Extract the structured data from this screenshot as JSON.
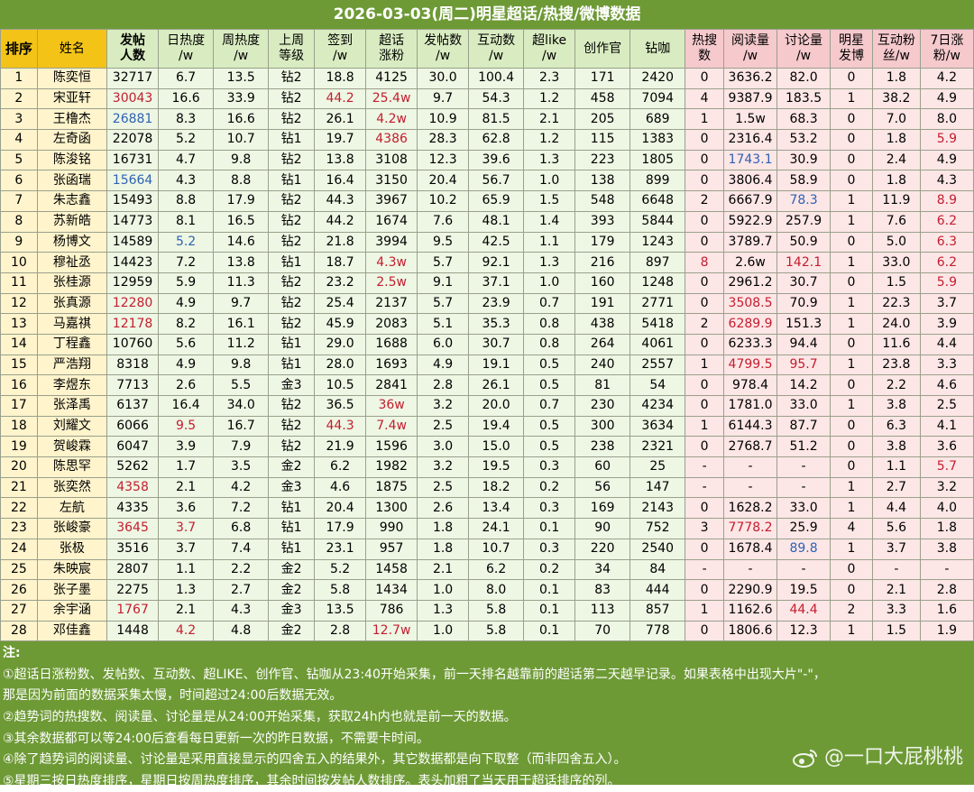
{
  "title": "2026-03-03(周二)明星超话/热搜/微博数据",
  "headers": [
    "排序",
    "姓名",
    "发帖\n人数",
    "日热度\n/w",
    "周热度\n/w",
    "上周\n等级",
    "签到\n/w",
    "超话\n涨粉",
    "发帖数\n/w",
    "互动数\n/w",
    "超like\n/w",
    "创作官",
    "钻咖",
    "热搜\n数",
    "阅读量\n/w",
    "讨论量\n/w",
    "明星\n发博",
    "互动粉\n丝/w",
    "7日涨\n粉/w"
  ],
  "rows": [
    [
      "1",
      "陈奕恒",
      "32717",
      "6.7",
      "13.5",
      "钻2",
      "18.8",
      "4125",
      "30.0",
      "100.4",
      "2.3",
      "171",
      "2420",
      "0",
      "3636.2",
      "82.0",
      "0",
      "1.8",
      "4.2"
    ],
    [
      "2",
      "宋亚轩",
      "30043",
      "16.6",
      "33.9",
      "钻2",
      "44.2",
      "25.4w",
      "9.7",
      "54.3",
      "1.2",
      "458",
      "7094",
      "4",
      "9387.9",
      "183.5",
      "1",
      "38.2",
      "4.9"
    ],
    [
      "3",
      "王橹杰",
      "26881",
      "8.3",
      "16.6",
      "钻2",
      "26.1",
      "4.2w",
      "10.9",
      "81.5",
      "2.1",
      "205",
      "689",
      "1",
      "1.5w",
      "68.3",
      "0",
      "7.0",
      "8.0"
    ],
    [
      "4",
      "左奇函",
      "22078",
      "5.2",
      "10.7",
      "钻1",
      "19.7",
      "4386",
      "28.3",
      "62.8",
      "1.2",
      "115",
      "1383",
      "0",
      "2316.4",
      "53.2",
      "0",
      "1.8",
      "5.9"
    ],
    [
      "5",
      "陈浚铭",
      "16731",
      "4.7",
      "9.8",
      "钻2",
      "13.8",
      "3108",
      "12.3",
      "39.6",
      "1.3",
      "223",
      "1805",
      "0",
      "1743.1",
      "30.9",
      "0",
      "2.4",
      "4.9"
    ],
    [
      "6",
      "张函瑞",
      "15664",
      "4.3",
      "8.8",
      "钻1",
      "16.4",
      "3150",
      "20.4",
      "56.7",
      "1.0",
      "138",
      "899",
      "0",
      "3806.4",
      "58.9",
      "0",
      "1.8",
      "4.3"
    ],
    [
      "7",
      "朱志鑫",
      "15493",
      "8.8",
      "17.9",
      "钻2",
      "44.3",
      "3967",
      "10.2",
      "65.9",
      "1.5",
      "548",
      "6648",
      "2",
      "6667.9",
      "78.3",
      "1",
      "11.9",
      "8.9"
    ],
    [
      "8",
      "苏新皓",
      "14773",
      "8.1",
      "16.5",
      "钻2",
      "44.2",
      "1674",
      "7.6",
      "48.1",
      "1.4",
      "393",
      "5844",
      "0",
      "5922.9",
      "257.9",
      "1",
      "7.6",
      "6.2"
    ],
    [
      "9",
      "杨博文",
      "14589",
      "5.2",
      "14.6",
      "钻2",
      "21.8",
      "3994",
      "9.5",
      "42.5",
      "1.1",
      "179",
      "1243",
      "0",
      "3789.7",
      "50.9",
      "0",
      "5.0",
      "6.3"
    ],
    [
      "10",
      "穆祉丞",
      "14423",
      "7.2",
      "13.8",
      "钻1",
      "18.7",
      "4.3w",
      "5.7",
      "92.1",
      "1.3",
      "216",
      "897",
      "8",
      "2.6w",
      "142.1",
      "1",
      "33.0",
      "6.2"
    ],
    [
      "11",
      "张桂源",
      "12959",
      "5.9",
      "11.3",
      "钻2",
      "23.2",
      "2.5w",
      "9.1",
      "37.1",
      "1.0",
      "160",
      "1248",
      "0",
      "2961.2",
      "30.7",
      "0",
      "1.5",
      "5.9"
    ],
    [
      "12",
      "张真源",
      "12280",
      "4.9",
      "9.7",
      "钻2",
      "25.4",
      "2137",
      "5.7",
      "23.9",
      "0.7",
      "191",
      "2771",
      "0",
      "3508.5",
      "70.9",
      "1",
      "22.3",
      "3.7"
    ],
    [
      "13",
      "马嘉祺",
      "12178",
      "8.2",
      "16.1",
      "钻2",
      "45.9",
      "2083",
      "5.1",
      "35.3",
      "0.8",
      "438",
      "5418",
      "2",
      "6289.9",
      "151.3",
      "1",
      "24.0",
      "3.9"
    ],
    [
      "14",
      "丁程鑫",
      "10760",
      "5.6",
      "11.2",
      "钻1",
      "29.0",
      "1688",
      "6.0",
      "30.7",
      "0.8",
      "264",
      "4061",
      "0",
      "6233.3",
      "94.4",
      "0",
      "11.6",
      "4.4"
    ],
    [
      "15",
      "严浩翔",
      "8318",
      "4.9",
      "9.8",
      "钻1",
      "28.0",
      "1693",
      "4.9",
      "19.1",
      "0.5",
      "240",
      "2557",
      "1",
      "4799.5",
      "95.7",
      "1",
      "23.8",
      "3.3"
    ],
    [
      "16",
      "李煜东",
      "7713",
      "2.6",
      "5.5",
      "金3",
      "10.5",
      "2841",
      "2.8",
      "26.1",
      "0.5",
      "81",
      "54",
      "0",
      "978.4",
      "14.2",
      "0",
      "2.2",
      "4.6"
    ],
    [
      "17",
      "张泽禹",
      "6137",
      "16.4",
      "34.0",
      "钻2",
      "36.5",
      "36w",
      "3.2",
      "20.0",
      "0.7",
      "230",
      "4234",
      "0",
      "1781.0",
      "33.0",
      "1",
      "3.8",
      "2.5"
    ],
    [
      "18",
      "刘耀文",
      "6066",
      "9.5",
      "16.7",
      "钻2",
      "44.3",
      "7.4w",
      "2.5",
      "19.4",
      "0.5",
      "300",
      "3634",
      "1",
      "6144.3",
      "87.7",
      "0",
      "6.3",
      "4.1"
    ],
    [
      "19",
      "贺峻霖",
      "6047",
      "3.9",
      "7.9",
      "钻2",
      "21.9",
      "1596",
      "3.0",
      "15.0",
      "0.5",
      "238",
      "2321",
      "0",
      "2768.7",
      "51.2",
      "0",
      "3.8",
      "3.6"
    ],
    [
      "20",
      "陈思罕",
      "5262",
      "1.7",
      "3.5",
      "金2",
      "6.2",
      "1982",
      "3.2",
      "19.5",
      "0.3",
      "60",
      "25",
      "-",
      "-",
      "-",
      "0",
      "1.1",
      "5.7"
    ],
    [
      "21",
      "张奕然",
      "4358",
      "2.1",
      "4.2",
      "金3",
      "4.6",
      "1875",
      "2.5",
      "18.2",
      "0.2",
      "56",
      "147",
      "-",
      "-",
      "-",
      "1",
      "2.7",
      "3.2"
    ],
    [
      "22",
      "左航",
      "4335",
      "3.6",
      "7.2",
      "钻1",
      "20.4",
      "1300",
      "2.6",
      "13.4",
      "0.3",
      "169",
      "2143",
      "0",
      "1628.2",
      "33.0",
      "1",
      "4.4",
      "4.0"
    ],
    [
      "23",
      "张峻豪",
      "3645",
      "3.7",
      "6.8",
      "钻1",
      "17.9",
      "990",
      "1.8",
      "24.1",
      "0.1",
      "90",
      "752",
      "3",
      "7778.2",
      "25.9",
      "4",
      "5.6",
      "1.8"
    ],
    [
      "24",
      "张极",
      "3516",
      "3.7",
      "7.4",
      "钻1",
      "23.1",
      "957",
      "1.8",
      "10.7",
      "0.3",
      "220",
      "2540",
      "0",
      "1678.4",
      "89.8",
      "1",
      "3.7",
      "3.8"
    ],
    [
      "25",
      "朱映宸",
      "2807",
      "1.1",
      "2.2",
      "金2",
      "5.2",
      "1458",
      "2.1",
      "6.2",
      "0.2",
      "34",
      "84",
      "-",
      "-",
      "-",
      "0",
      "-",
      "-"
    ],
    [
      "26",
      "张子墨",
      "2275",
      "1.3",
      "2.7",
      "金2",
      "5.8",
      "1434",
      "1.0",
      "8.0",
      "0.1",
      "83",
      "444",
      "0",
      "2290.9",
      "19.5",
      "0",
      "2.1",
      "2.8"
    ],
    [
      "27",
      "余宇涵",
      "1767",
      "2.1",
      "4.3",
      "金3",
      "13.5",
      "786",
      "1.3",
      "5.8",
      "0.1",
      "113",
      "857",
      "1",
      "1162.6",
      "44.4",
      "2",
      "3.3",
      "1.6"
    ],
    [
      "28",
      "邓佳鑫",
      "1448",
      "4.2",
      "4.8",
      "金2",
      "2.8",
      "12.7w",
      "1.0",
      "5.8",
      "0.1",
      "70",
      "778",
      "0",
      "1806.6",
      "12.3",
      "1",
      "1.5",
      "1.9"
    ]
  ],
  "highlights": {
    "red": [
      "2-2",
      "2-6",
      "2-7",
      "3-7",
      "4-7",
      "4-18",
      "7-15",
      "7-18",
      "8-18",
      "9-18",
      "10-7",
      "10-13",
      "10-15",
      "10-18",
      "11-7",
      "11-18",
      "12-2",
      "12-14",
      "13-2",
      "13-14",
      "15-14",
      "15-15",
      "17-7",
      "18-3",
      "18-6",
      "18-7",
      "20-18",
      "21-2",
      "23-2",
      "23-3",
      "23-14",
      "27-2",
      "27-15",
      "28-3",
      "28-7"
    ],
    "blue": [
      "3-2",
      "5-14",
      "6-2",
      "7-15",
      "9-3",
      "24-15"
    ]
  },
  "notes": {
    "head": "注:",
    "lines": [
      "①超话日涨粉数、发帖数、互动数、超LIKE、创作官、钻咖从23:40开始采集，前一天排名越靠前的超话第二天越早记录。如果表格中出现大片\"-\"，",
      "那是因为前面的数据采集太慢，时间超过24:00后数据无效。",
      "②趋势词的热搜数、阅读量、讨论量是从24:00开始采集，获取24h内也就是前一天的数据。",
      "③其余数据都可以等24:00后查看每日更新一次的昨日数据，不需要卡时间。",
      "④除了趋势词的阅读量、讨论量是采用直接显示的四舍五入的结果外，其它数据都是向下取整（而非四舍五入）。",
      "⑤星期三按日热度排序，星期日按周热度排序，其余时间按发帖人数排序。表头加粗了当天用于超话排序的列。"
    ]
  },
  "watermark": "@一口大屁桃桃",
  "icons": {
    "weibo": "weibo-icon"
  }
}
